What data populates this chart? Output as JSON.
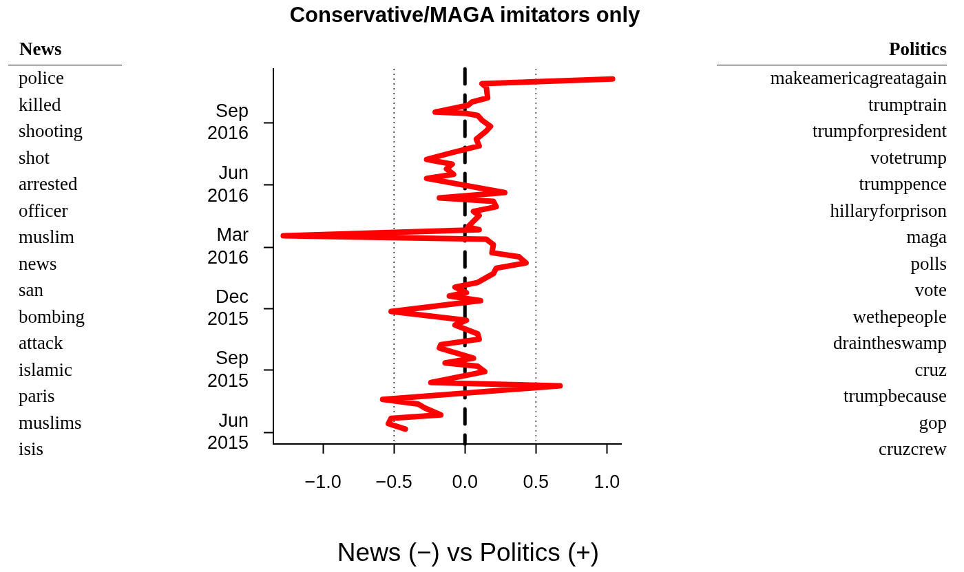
{
  "chart_data": {
    "type": "line",
    "orientation": "horizontal",
    "title": "Conservative/MAGA imitators only",
    "xlabel": "News (−) vs Politics (+)",
    "x": [
      "2015-06-06",
      "2015-06-14",
      "2015-06-22",
      "2015-06-27",
      "2015-07-07",
      "2015-07-13",
      "2015-07-20",
      "2015-08-09",
      "2015-08-14",
      "2015-08-30",
      "2015-09-07",
      "2015-09-12",
      "2015-09-19",
      "2015-10-04",
      "2015-10-09",
      "2015-10-17",
      "2015-10-25",
      "2015-11-07",
      "2015-11-14",
      "2015-11-27",
      "2015-12-13",
      "2015-12-20",
      "2015-12-25",
      "2016-01-02",
      "2016-01-09",
      "2016-01-22",
      "2016-01-30",
      "2016-02-07",
      "2016-02-16",
      "2016-02-22",
      "2016-03-05",
      "2016-03-13",
      "2016-03-18",
      "2016-03-27",
      "2016-03-31",
      "2016-04-17",
      "2016-04-23",
      "2016-04-30",
      "2016-05-08",
      "2016-05-13",
      "2016-05-21",
      "2016-06-11",
      "2016-06-17",
      "2016-06-25",
      "2016-07-02",
      "2016-07-09",
      "2016-07-18",
      "2016-07-29",
      "2016-08-08",
      "2016-08-20",
      "2016-08-27",
      "2016-09-05",
      "2016-09-12",
      "2016-09-15",
      "2016-09-17",
      "2016-09-27",
      "2016-10-02",
      "2016-10-08",
      "2016-10-24",
      "2016-10-29",
      "2016-11-05"
    ],
    "series": [
      {
        "color": "#ff0000",
        "values": [
          -0.42,
          -0.54,
          -0.52,
          -0.17,
          -0.28,
          -0.33,
          -0.58,
          0.67,
          -0.24,
          0.14,
          0.09,
          -0.14,
          0.06,
          -0.18,
          -0.17,
          0.1,
          0.09,
          -0.07,
          0.01,
          -0.52,
          0.11,
          -0.11,
          0.01,
          -0.07,
          0.09,
          0.2,
          0.22,
          0.43,
          0.38,
          0.19,
          0.2,
          0.15,
          -1.28,
          0.1,
          0.02,
          0.1,
          0.06,
          0.22,
          0.2,
          -0.18,
          0.28,
          -0.27,
          -0.08,
          -0.13,
          -0.09,
          -0.27,
          -0.11,
          0.1,
          0.08,
          0.15,
          0.18,
          0.12,
          0.09,
          0.01,
          -0.21,
          0.02,
          0.05,
          0.16,
          0.15,
          0.12,
          1.04
        ]
      }
    ],
    "xlim": [
      -1.35,
      1.1
    ],
    "xticks": [
      {
        "value": -1,
        "label": "−1.0"
      },
      {
        "value": -0.5,
        "label": "−0.5"
      },
      {
        "value": 0,
        "label": "0.0"
      },
      {
        "value": 0.5,
        "label": "0.5"
      },
      {
        "value": 1,
        "label": "1.0"
      }
    ],
    "ylim": [
      "2015-05-15",
      "2016-11-20"
    ],
    "yticks": [
      {
        "value": "2015-06-01",
        "label": "Jun 2015"
      },
      {
        "value": "2015-09-01",
        "label": "Sep 2015"
      },
      {
        "value": "2015-12-01",
        "label": "Dec 2015"
      },
      {
        "value": "2016-03-01",
        "label": "Mar 2016"
      },
      {
        "value": "2016-06-01",
        "label": "Jun 2016"
      },
      {
        "value": "2016-09-01",
        "label": "Sep 2016"
      }
    ],
    "ref_lines": [
      {
        "axis": "x",
        "value": 0,
        "color": "#000000",
        "line_style": "dashed"
      },
      {
        "axis": "x",
        "value": -0.5,
        "color": "#000000",
        "line_style": "dotted"
      },
      {
        "axis": "x",
        "value": 0.5,
        "color": "#000000",
        "line_style": "dotted"
      }
    ],
    "annotations": [
      "News",
      "police",
      "killed",
      "shooting",
      "shot",
      "arrested",
      "officer",
      "muslim",
      "news",
      "san",
      "bombing",
      "attack",
      "islamic",
      "paris",
      "muslims",
      "isis",
      "Politics",
      "makeamericagreatagain",
      "trumptrain",
      "trumpforpresident",
      "votetrump",
      "trumppence",
      "hillaryforprison",
      "maga",
      "polls",
      "vote",
      "wethepeople",
      "draintheswamp",
      "cruz",
      "trumpbecause",
      "gop",
      "cruzcrew"
    ],
    "grid": false,
    "legend": false,
    "marker": "none",
    "line_style": "solid"
  }
}
